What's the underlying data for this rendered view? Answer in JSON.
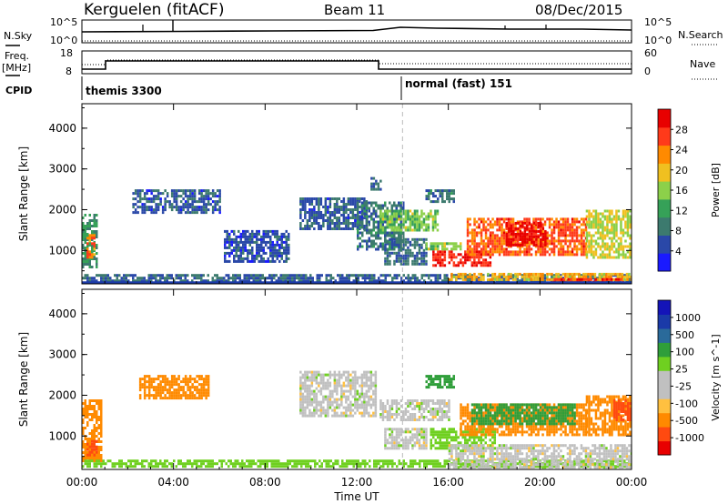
{
  "header": {
    "title": "Kerguelen (fitACF)",
    "beam": "Beam 11",
    "date": "08/Dec/2015"
  },
  "strip_labels": {
    "nsky": "N.Sky",
    "nsearch": "N.Search",
    "freq_line1": "Freq.",
    "freq_line2": "[MHz]",
    "nave": "Nave",
    "cpid": "CPID",
    "nsky_ticks": [
      "10^5",
      "10^0"
    ],
    "nsearch_ticks": [
      "10^5",
      "10^0"
    ],
    "freq_ticks": [
      "18",
      "8"
    ],
    "nave_ticks": [
      "60",
      "0"
    ]
  },
  "cpid_segments": [
    {
      "label": "themis 3300",
      "start_hour": 0
    },
    {
      "label": "normal (fast) 151",
      "start_hour": 14
    }
  ],
  "colors": {
    "power": [
      "#1a1aff",
      "#2a48a8",
      "#3c7a6e",
      "#36a158",
      "#8cd04a",
      "#f0c020",
      "#ff8a00",
      "#ff3a1a",
      "#e80000"
    ],
    "velocity": [
      "#e80000",
      "#ff4a10",
      "#ff8a00",
      "#ffc040",
      "#c0c0c0",
      "#c0c0c0",
      "#6fd020",
      "#2f9e3a",
      "#2a6a9a",
      "#1a3aa8",
      "#1414b8"
    ]
  },
  "chart_data": [
    {
      "type": "heatmap",
      "title": "",
      "xlabel": "Time UT",
      "ylabel": "Slant Range [km]",
      "xlim": [
        0,
        24
      ],
      "ylim": [
        180,
        4600
      ],
      "xticks": [
        "00:00",
        "04:00",
        "08:00",
        "12:00",
        "16:00",
        "20:00",
        "00:00"
      ],
      "yticks": [
        "1000",
        "2000",
        "3000",
        "4000"
      ],
      "colorbar": {
        "label": "Power [dB]",
        "ticks": [
          "4",
          "8",
          "12",
          "16",
          "20",
          "24",
          "28"
        ],
        "range": [
          0,
          30
        ]
      },
      "regions": [
        {
          "t0": 0.0,
          "t1": 0.6,
          "r0": 600,
          "r1": 1900,
          "value": 10
        },
        {
          "t0": 0.2,
          "t1": 0.5,
          "r0": 800,
          "r1": 1400,
          "value": 22
        },
        {
          "t0": 0.0,
          "t1": 24.0,
          "r0": 220,
          "r1": 420,
          "value": 7
        },
        {
          "t0": 2.2,
          "t1": 6.0,
          "r0": 1900,
          "r1": 2500,
          "value": 6
        },
        {
          "t0": 6.2,
          "t1": 9.0,
          "r0": 700,
          "r1": 1500,
          "value": 5
        },
        {
          "t0": 9.5,
          "t1": 12.4,
          "r0": 1500,
          "r1": 2300,
          "value": 6
        },
        {
          "t0": 12.0,
          "t1": 14.0,
          "r0": 1000,
          "r1": 2200,
          "value": 8
        },
        {
          "t0": 12.6,
          "t1": 13.0,
          "r0": 2500,
          "r1": 2800,
          "value": 6
        },
        {
          "t0": 13.0,
          "t1": 15.5,
          "r0": 1500,
          "r1": 2000,
          "value": 14
        },
        {
          "t0": 13.2,
          "t1": 15.0,
          "r0": 650,
          "r1": 1300,
          "value": 7
        },
        {
          "t0": 15.0,
          "t1": 16.2,
          "r0": 2200,
          "r1": 2500,
          "value": 8
        },
        {
          "t0": 15.3,
          "t1": 17.8,
          "r0": 600,
          "r1": 1000,
          "value": 27
        },
        {
          "t0": 15.0,
          "t1": 16.5,
          "r0": 1000,
          "r1": 1200,
          "value": 15
        },
        {
          "t0": 16.8,
          "t1": 22.0,
          "r0": 900,
          "r1": 1800,
          "value": 24
        },
        {
          "t0": 18.5,
          "t1": 20.2,
          "r0": 1100,
          "r1": 1700,
          "value": 29
        },
        {
          "t0": 22.0,
          "t1": 24.0,
          "r0": 800,
          "r1": 2000,
          "value": 17
        },
        {
          "t0": 16.0,
          "t1": 24.0,
          "r0": 250,
          "r1": 450,
          "value": 19
        },
        {
          "t0": 20.5,
          "t1": 23.8,
          "r0": 220,
          "r1": 320,
          "value": 25
        }
      ]
    },
    {
      "type": "heatmap",
      "title": "",
      "xlabel": "Time UT",
      "ylabel": "Slant Range [km]",
      "xlim": [
        0,
        24
      ],
      "ylim": [
        180,
        4600
      ],
      "xticks": [
        "00:00",
        "04:00",
        "08:00",
        "12:00",
        "16:00",
        "20:00",
        "00:00"
      ],
      "yticks": [
        "1000",
        "2000",
        "3000",
        "4000"
      ],
      "colorbar": {
        "label": "Velocity [m s^-1]",
        "ticks": [
          "1000",
          "500",
          "100",
          "25",
          "-25",
          "-100",
          "-500",
          "-1000"
        ],
        "range": [
          -1200,
          1200
        ]
      },
      "regions": [
        {
          "t0": 0.0,
          "t1": 0.8,
          "r0": 400,
          "r1": 1900,
          "value": -300
        },
        {
          "t0": 0.2,
          "t1": 0.6,
          "r0": 500,
          "r1": 900,
          "value": -700
        },
        {
          "t0": 0.0,
          "t1": 24.0,
          "r0": 220,
          "r1": 420,
          "value": 60
        },
        {
          "t0": 2.5,
          "t1": 5.5,
          "r0": 1900,
          "r1": 2500,
          "value": -200
        },
        {
          "t0": 9.5,
          "t1": 12.8,
          "r0": 1500,
          "r1": 2600,
          "value": 0
        },
        {
          "t0": 13.0,
          "t1": 16.0,
          "r0": 1400,
          "r1": 1900,
          "value": 0
        },
        {
          "t0": 13.2,
          "t1": 15.0,
          "r0": 700,
          "r1": 1200,
          "value": 0
        },
        {
          "t0": 15.0,
          "t1": 16.2,
          "r0": 2200,
          "r1": 2500,
          "value": 150
        },
        {
          "t0": 15.2,
          "t1": 18.0,
          "r0": 700,
          "r1": 1200,
          "value": 60
        },
        {
          "t0": 16.5,
          "t1": 22.0,
          "r0": 1000,
          "r1": 1800,
          "value": -150
        },
        {
          "t0": 17.0,
          "t1": 21.5,
          "r0": 1300,
          "r1": 1800,
          "value": 250
        },
        {
          "t0": 16.0,
          "t1": 24.0,
          "r0": 250,
          "r1": 800,
          "value": 0
        },
        {
          "t0": 22.0,
          "t1": 24.0,
          "r0": 1000,
          "r1": 2000,
          "value": -300
        },
        {
          "t0": 23.2,
          "t1": 24.0,
          "r0": 1400,
          "r1": 1900,
          "value": -700
        }
      ]
    }
  ]
}
